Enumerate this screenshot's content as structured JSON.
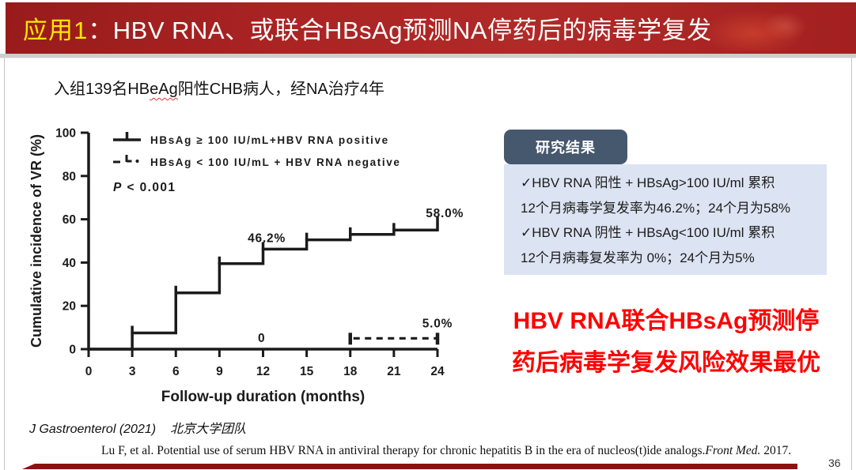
{
  "slide": {
    "title": {
      "prefix": "应用1",
      "main": "：HBV RNA、或联合HBsAg预测NA停药后的病毒学复发"
    },
    "subtitle": {
      "pre": "入组139名HB",
      "wavy": "eAg",
      "post": "阳性CHB病人，经NA治疗4年"
    },
    "page_number": "36"
  },
  "results_panel": {
    "badge": "研究结果",
    "lines": [
      "✓HBV RNA 阳性 + HBsAg>100 IU/ml 累积",
      "12个月病毒学复发率为46.2%；24个月为58%",
      "✓HBV RNA 阴性 + HBsAg<100 IU/ml 累积",
      "12个月病毒复发率为 0%；24个月为5%"
    ]
  },
  "conclusion": {
    "line1": "HBV RNA联合HBsAg预测停",
    "line2": "药后病毒学复发风险效果最优"
  },
  "footer": {
    "source_journal": "J Gastroenterol (2021)",
    "source_team": "北京大学团队",
    "citation_text": "Lu F, et al. Potential use of serum HBV RNA in antiviral therapy for chronic hepatitis B in the era of nucleos(t)ide analogs.",
    "citation_journal": "Front Med.",
    "citation_year": "2017."
  },
  "colors": {
    "title_bar_red": "#a82222",
    "title_accent_yellow": "#ffe600",
    "badge_slate": "#46586d",
    "results_box_blue": "#dce3f2",
    "conclusion_red": "#ff0000",
    "footer_bar_red": "#8e1111",
    "chart_ink": "#1b1b1b"
  },
  "chart_data": {
    "type": "line",
    "subtype": "kaplan_meier_step",
    "title": "",
    "xlabel": "Follow-up duration (months)",
    "ylabel": "Cumulative incidence of VR (%)",
    "xlim": [
      0,
      24
    ],
    "ylim": [
      0,
      100
    ],
    "xticks": [
      0,
      3,
      6,
      9,
      12,
      15,
      18,
      21,
      24
    ],
    "yticks": [
      0,
      20,
      40,
      60,
      80,
      100
    ],
    "grid": false,
    "legend_position": "upper-left-inside",
    "p_value_label": "P < 0.001",
    "series": [
      {
        "name": "HBsAg ≥ 100 IU/mL+HBV RNA positive",
        "style": "solid",
        "steps": [
          [
            0,
            0
          ],
          [
            3,
            7.5
          ],
          [
            6,
            26
          ],
          [
            9,
            39.5
          ],
          [
            12,
            46.2
          ],
          [
            15,
            50.5
          ],
          [
            18,
            53
          ],
          [
            21,
            55
          ],
          [
            24,
            58
          ]
        ],
        "censor_ticks_at": [
          3,
          6,
          9,
          12,
          15,
          18,
          21,
          24
        ],
        "annotations": [
          {
            "text": "46.2%",
            "x": 12.25,
            "y": 49.5
          },
          {
            "text": "58.0%",
            "x": 24.5,
            "y": 61
          }
        ]
      },
      {
        "name": "HBsAg < 100 IU/mL + HBV RNA negative",
        "style": "dashed",
        "steps": [
          [
            0,
            0
          ],
          [
            18,
            0
          ],
          [
            18,
            5
          ],
          [
            24,
            5
          ]
        ],
        "censor_ticks_at": [
          18,
          24
        ],
        "annotations": [
          {
            "text": "0",
            "x": 11.9,
            "y": 3.3
          },
          {
            "text": "5.0%",
            "x": 24,
            "y": 10
          }
        ]
      }
    ],
    "key_values": {
      "group1_12mo": "46.2%",
      "group1_24mo": "58.0%",
      "group2_12mo": "0%",
      "group2_24mo": "5.0%"
    }
  }
}
